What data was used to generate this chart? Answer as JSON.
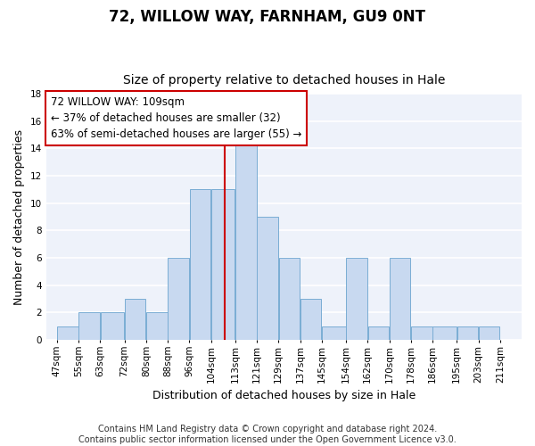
{
  "title": "72, WILLOW WAY, FARNHAM, GU9 0NT",
  "subtitle": "Size of property relative to detached houses in Hale",
  "xlabel": "Distribution of detached houses by size in Hale",
  "ylabel": "Number of detached properties",
  "bar_left_edges": [
    47,
    55,
    63,
    72,
    80,
    88,
    96,
    104,
    113,
    121,
    129,
    137,
    145,
    154,
    162,
    170,
    178,
    186,
    195,
    203
  ],
  "bar_widths": [
    8,
    8,
    9,
    8,
    8,
    8,
    8,
    9,
    8,
    8,
    8,
    8,
    9,
    8,
    8,
    8,
    8,
    9,
    8,
    8
  ],
  "bar_heights": [
    1,
    2,
    2,
    3,
    2,
    6,
    11,
    11,
    15,
    9,
    6,
    3,
    1,
    6,
    1,
    6,
    1,
    1,
    1,
    1
  ],
  "bar_facecolor": "#c8d9f0",
  "bar_edgecolor": "#7aadd4",
  "property_line_x": 109,
  "property_line_color": "#cc0000",
  "xlim": [
    43,
    219
  ],
  "ylim": [
    0,
    18
  ],
  "yticks": [
    0,
    2,
    4,
    6,
    8,
    10,
    12,
    14,
    16,
    18
  ],
  "xtick_labels": [
    "47sqm",
    "55sqm",
    "63sqm",
    "72sqm",
    "80sqm",
    "88sqm",
    "96sqm",
    "104sqm",
    "113sqm",
    "121sqm",
    "129sqm",
    "137sqm",
    "145sqm",
    "154sqm",
    "162sqm",
    "170sqm",
    "178sqm",
    "186sqm",
    "195sqm",
    "203sqm",
    "211sqm"
  ],
  "xtick_positions": [
    47,
    55,
    63,
    72,
    80,
    88,
    96,
    104,
    113,
    121,
    129,
    137,
    145,
    154,
    162,
    170,
    178,
    186,
    195,
    203,
    211
  ],
  "annotation_line1": "72 WILLOW WAY: 109sqm",
  "annotation_line2": "← 37% of detached houses are smaller (32)",
  "annotation_line3": "63% of semi-detached houses are larger (55) →",
  "annotation_box_color": "#ffffff",
  "annotation_box_edgecolor": "#cc0000",
  "footer_text": "Contains HM Land Registry data © Crown copyright and database right 2024.\nContains public sector information licensed under the Open Government Licence v3.0.",
  "background_color": "#ffffff",
  "plot_background_color": "#eef2fa",
  "grid_color": "#ffffff",
  "title_fontsize": 12,
  "subtitle_fontsize": 10,
  "axis_label_fontsize": 9,
  "tick_fontsize": 7.5,
  "annotation_fontsize": 8.5,
  "footer_fontsize": 7
}
